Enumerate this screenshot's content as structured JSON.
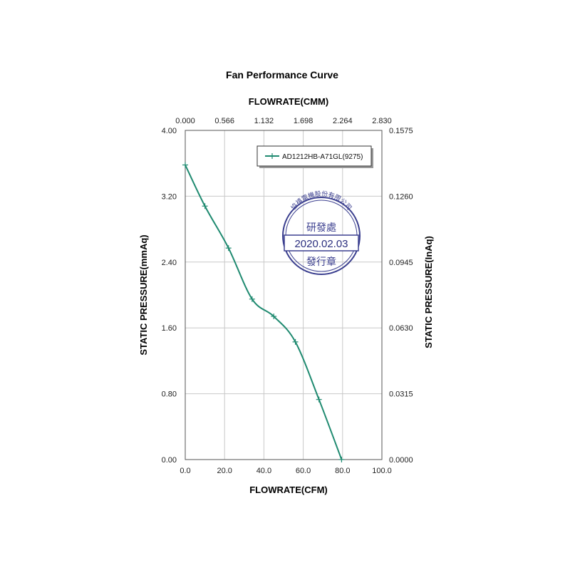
{
  "chart_data": {
    "type": "line",
    "title": "Fan Performance Curve",
    "xlabel": "FLOWRATE(CFM)",
    "x2label": "FLOWRATE(CMM)",
    "ylabel": "STATIC PRESSURE(mmAq)",
    "y2label": "STATIC PRESSURE(InAq)",
    "xlim": [
      0,
      100
    ],
    "ylim": [
      0,
      4
    ],
    "x_ticks": [
      "0.0",
      "20.0",
      "40.0",
      "60.0",
      "80.0",
      "100.0"
    ],
    "x2_ticks": [
      "0.000",
      "0.566",
      "1.132",
      "1.698",
      "2.264",
      "2.830"
    ],
    "y_ticks": [
      "0.00",
      "0.80",
      "1.60",
      "2.40",
      "3.20",
      "4.00"
    ],
    "y2_ticks": [
      "0.0000",
      "0.0315",
      "0.0630",
      "0.0945",
      "0.1260",
      "0.1575"
    ],
    "grid": true,
    "legend_position": "top-right",
    "series": [
      {
        "name": "AD1212HB-A71GL(9275)",
        "color": "#1f8a70",
        "x": [
          0,
          10,
          22,
          34,
          45,
          56,
          68,
          79.5
        ],
        "y": [
          3.58,
          3.08,
          2.57,
          1.95,
          1.74,
          1.43,
          0.73,
          0.0
        ]
      }
    ]
  },
  "stamp": {
    "arc_text": "協禧電機股份有限公司",
    "line1": "研發處",
    "date": "2020.02.03",
    "line2": "發行章",
    "color": "#3b3f8f"
  }
}
